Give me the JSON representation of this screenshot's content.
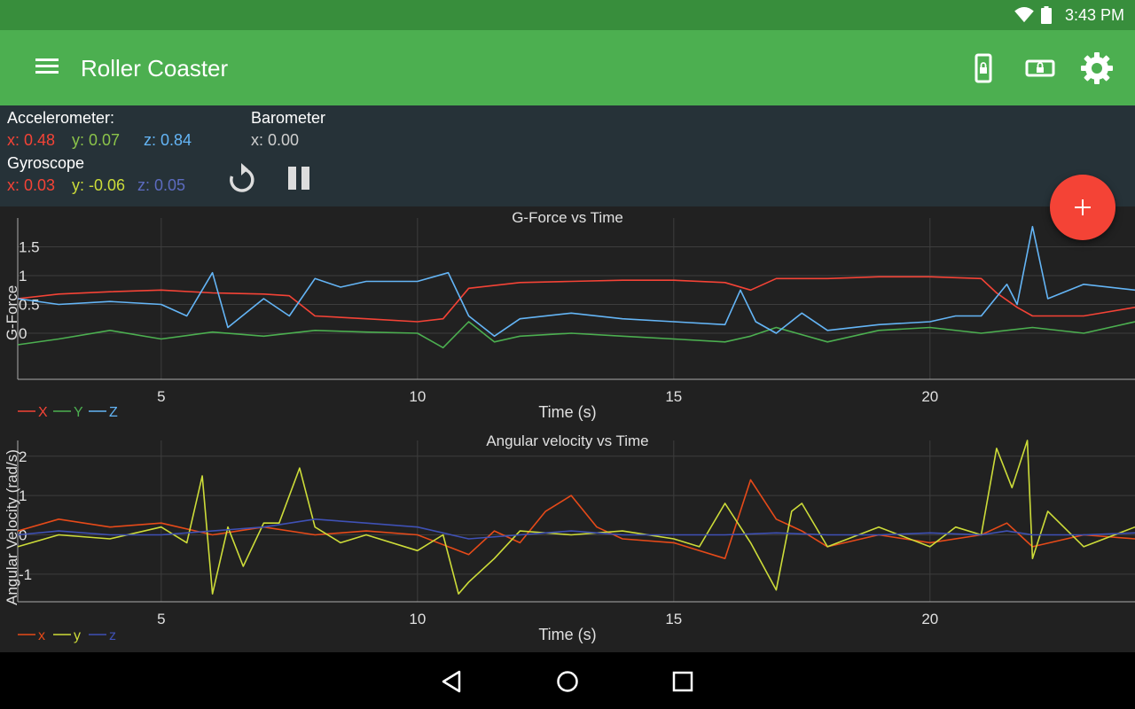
{
  "status_bar": {
    "time": "3:43 PM"
  },
  "app_bar": {
    "title": "Roller Coaster"
  },
  "sensors": {
    "accelerometer": {
      "label": "Accelerometer:",
      "x": "x: 0.48",
      "y": "y: 0.07",
      "z": "z: 0.84"
    },
    "barometer": {
      "label": "Barometer",
      "x": "x: 0.00"
    },
    "gyroscope": {
      "label": "Gyroscope",
      "x": "x: 0.03",
      "y": "y: -0.06",
      "z": "z: 0.05"
    }
  },
  "colors": {
    "status_bar": "#388E3C",
    "app_bar": "#4CAF50",
    "panel": "#263238",
    "fab": "#F44336",
    "x": "#F44336",
    "y": "#4CAF50",
    "z": "#64B5F6",
    "gx": "#E64A19",
    "gy": "#CDDC39",
    "gz": "#3F51B5"
  },
  "chart_data": [
    {
      "type": "line",
      "title": "G-Force vs Time",
      "xlabel": "Time (s)",
      "ylabel": "G-Force",
      "xlim": [
        2.2,
        24
      ],
      "ylim": [
        -0.8,
        2.0
      ],
      "xticks": [
        5,
        10,
        15,
        20
      ],
      "yticks": [
        0,
        0.5,
        1,
        1.5
      ],
      "grid": true,
      "legend": "bottom-left",
      "series": [
        {
          "name": "X",
          "color": "#F44336",
          "x": [
            2.2,
            3,
            4,
            5,
            6,
            7,
            7.5,
            8,
            9,
            10,
            10.5,
            11,
            12,
            13,
            14,
            15,
            16,
            16.5,
            17,
            18,
            19,
            20,
            21,
            21.3,
            21.7,
            22,
            23,
            24
          ],
          "values": [
            0.6,
            0.68,
            0.72,
            0.75,
            0.7,
            0.68,
            0.65,
            0.3,
            0.25,
            0.2,
            0.25,
            0.78,
            0.88,
            0.9,
            0.92,
            0.92,
            0.88,
            0.75,
            0.95,
            0.95,
            0.98,
            0.98,
            0.95,
            0.7,
            0.45,
            0.3,
            0.3,
            0.45
          ]
        },
        {
          "name": "Y",
          "color": "#4CAF50",
          "x": [
            2.2,
            3,
            4,
            5,
            6,
            7,
            8,
            9,
            10,
            10.5,
            11,
            11.5,
            12,
            13,
            14,
            15,
            16,
            16.5,
            17,
            18,
            19,
            20,
            21,
            22,
            23,
            24
          ],
          "values": [
            -0.2,
            -0.1,
            0.05,
            -0.1,
            0.02,
            -0.05,
            0.05,
            0.02,
            0.0,
            -0.25,
            0.2,
            -0.15,
            -0.05,
            0.0,
            -0.05,
            -0.1,
            -0.15,
            -0.05,
            0.1,
            -0.15,
            0.05,
            0.1,
            0.0,
            0.1,
            0.0,
            0.2
          ]
        },
        {
          "name": "Z",
          "color": "#64B5F6",
          "x": [
            2.2,
            3,
            4,
            5,
            5.5,
            6,
            6.3,
            7,
            7.5,
            8,
            8.5,
            9,
            10,
            10.6,
            11,
            11.5,
            12,
            13,
            14,
            15,
            16,
            16.3,
            16.6,
            17,
            17.5,
            18,
            19,
            20,
            20.5,
            21,
            21.5,
            21.7,
            22,
            22.3,
            23,
            24
          ],
          "values": [
            0.6,
            0.5,
            0.55,
            0.5,
            0.3,
            1.05,
            0.1,
            0.6,
            0.3,
            0.95,
            0.8,
            0.9,
            0.9,
            1.05,
            0.3,
            -0.05,
            0.25,
            0.35,
            0.25,
            0.2,
            0.15,
            0.75,
            0.2,
            0.0,
            0.35,
            0.05,
            0.15,
            0.2,
            0.3,
            0.3,
            0.85,
            0.5,
            1.85,
            0.6,
            0.85,
            0.75
          ]
        }
      ]
    },
    {
      "type": "line",
      "title": "Angular velocity vs Time",
      "xlabel": "Time (s)",
      "ylabel": "Angular Velocity (rad/s)",
      "xlim": [
        2.2,
        24
      ],
      "ylim": [
        -1.7,
        2.4
      ],
      "xticks": [
        5,
        10,
        15,
        20
      ],
      "yticks": [
        -1,
        0,
        1,
        2
      ],
      "grid": true,
      "legend": "bottom-left",
      "series": [
        {
          "name": "x",
          "color": "#E64A19",
          "x": [
            2.2,
            3,
            4,
            5,
            6,
            7,
            8,
            9,
            10,
            11,
            11.5,
            12,
            12.5,
            13,
            13.5,
            14,
            15,
            16,
            16.5,
            17,
            17.5,
            18,
            19,
            20,
            21,
            21.5,
            22,
            23,
            24
          ],
          "values": [
            0.1,
            0.4,
            0.2,
            0.3,
            0.0,
            0.2,
            0.0,
            0.1,
            0.0,
            -0.5,
            0.1,
            -0.2,
            0.6,
            1.0,
            0.2,
            -0.1,
            -0.2,
            -0.6,
            1.4,
            0.4,
            0.1,
            -0.3,
            0.0,
            -0.2,
            0.0,
            0.3,
            -0.3,
            0.0,
            -0.1
          ]
        },
        {
          "name": "y",
          "color": "#CDDC39",
          "x": [
            2.2,
            3,
            4,
            5,
            5.5,
            5.8,
            6,
            6.3,
            6.6,
            7,
            7.3,
            7.7,
            8,
            8.5,
            9,
            10,
            10.5,
            10.8,
            11,
            11.5,
            12,
            13,
            14,
            15,
            15.5,
            16,
            16.5,
            17,
            17.3,
            17.5,
            18,
            19,
            20,
            20.5,
            21,
            21.3,
            21.6,
            21.9,
            22,
            22.3,
            23,
            24
          ],
          "values": [
            -0.3,
            0.0,
            -0.1,
            0.2,
            -0.2,
            1.5,
            -1.5,
            0.2,
            -0.8,
            0.3,
            0.3,
            1.7,
            0.2,
            -0.2,
            0.0,
            -0.4,
            0.0,
            -1.5,
            -1.2,
            -0.6,
            0.1,
            0.0,
            0.1,
            -0.1,
            -0.3,
            0.8,
            -0.2,
            -1.4,
            0.6,
            0.8,
            -0.3,
            0.2,
            -0.3,
            0.2,
            0.0,
            2.2,
            1.2,
            2.4,
            -0.6,
            0.6,
            -0.3,
            0.2
          ]
        },
        {
          "name": "z",
          "color": "#3F51B5",
          "x": [
            2.2,
            3,
            4,
            5,
            6,
            7,
            8,
            9,
            10,
            11,
            12,
            13,
            14,
            15,
            16,
            17,
            18,
            19,
            20,
            21,
            21.5,
            22,
            23,
            24
          ],
          "values": [
            0.0,
            0.1,
            0.0,
            0.0,
            0.1,
            0.2,
            0.4,
            0.3,
            0.2,
            -0.1,
            0.0,
            0.1,
            0.0,
            0.0,
            0.0,
            0.05,
            0.0,
            0.0,
            0.05,
            0.0,
            0.1,
            0.0,
            0.0,
            0.05
          ]
        }
      ]
    }
  ]
}
